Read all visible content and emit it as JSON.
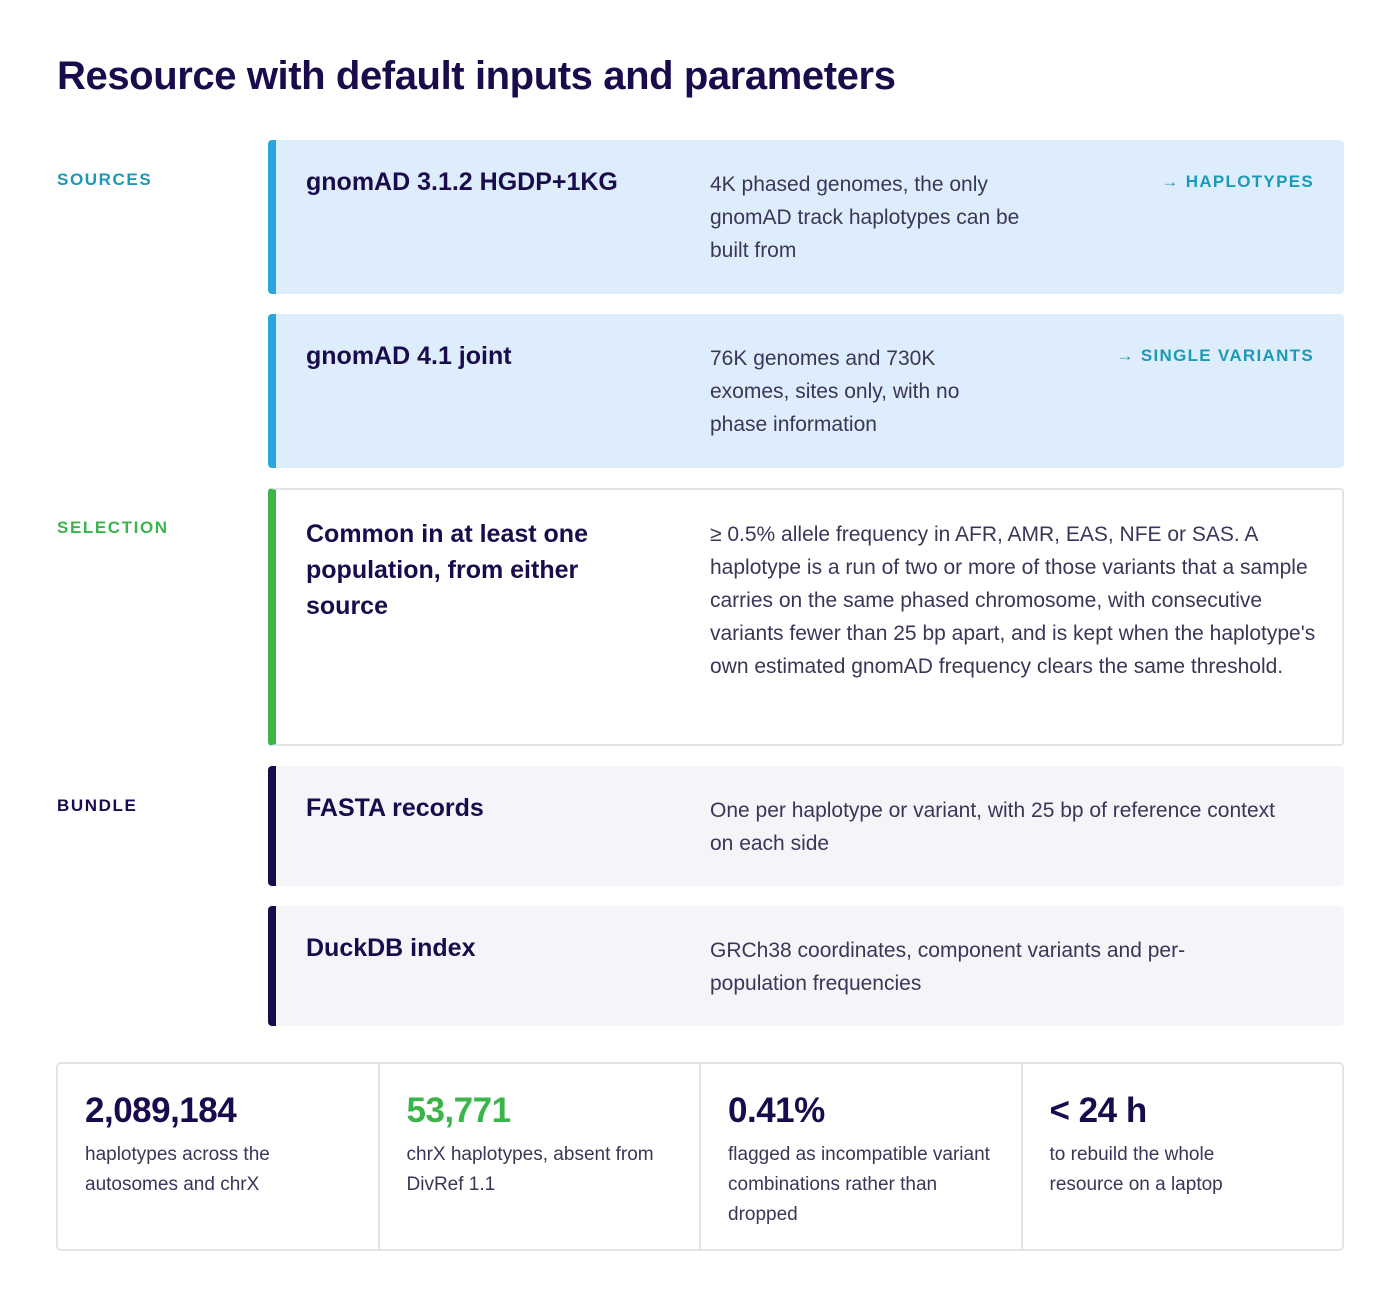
{
  "title": "Resource with default inputs and parameters",
  "colors": {
    "sources_accent": "#2aa6df",
    "sources_label": "#1a9ab8",
    "selection_accent": "#3bb54a",
    "bundle_accent": "#1a0b4d"
  },
  "sources": {
    "label": "SOURCES",
    "items": [
      {
        "title": "gnomAD 3.1.2 HGDP+1KG",
        "description": "4K phased genomes, the only gnomAD track haplotypes can be built from",
        "target": "→ HAPLOTYPES"
      },
      {
        "title": "gnomAD 4.1 joint",
        "description": "76K genomes and 730K exomes, sites only, with no phase information",
        "target": "→ SINGLE VARIANTS"
      }
    ]
  },
  "selection": {
    "label": "SELECTION",
    "title": "Common in at least one population, from either source",
    "description": "≥ 0.5% allele frequency in AFR, AMR, EAS, NFE or SAS. A haplotype is a run of two or more of those variants that a sample carries on the same phased chromosome, with consecutive variants fewer than 25 bp apart, and is kept when the haplotype's own estimated gnomAD frequency clears the same threshold."
  },
  "bundle": {
    "label": "BUNDLE",
    "items": [
      {
        "title": "FASTA records",
        "description": "One per haplotype or variant, with 25 bp of reference context on each side"
      },
      {
        "title": "DuckDB index",
        "description": "GRCh38 coordinates, component variants and per-population frequencies"
      }
    ]
  },
  "stats": [
    {
      "value": "2,089,184",
      "caption": "haplotypes across the autosomes and chrX",
      "color": "#1a0b4d"
    },
    {
      "value": "53,771",
      "caption": "chrX haplotypes, absent from DivRef 1.1",
      "color": "#3bb54a"
    },
    {
      "value": "0.41%",
      "caption": "flagged as incompatible variant combinations rather than dropped",
      "color": "#1a0b4d"
    },
    {
      "value": "< 24 h",
      "caption": "to rebuild the whole resource on a laptop",
      "color": "#1a0b4d"
    }
  ]
}
